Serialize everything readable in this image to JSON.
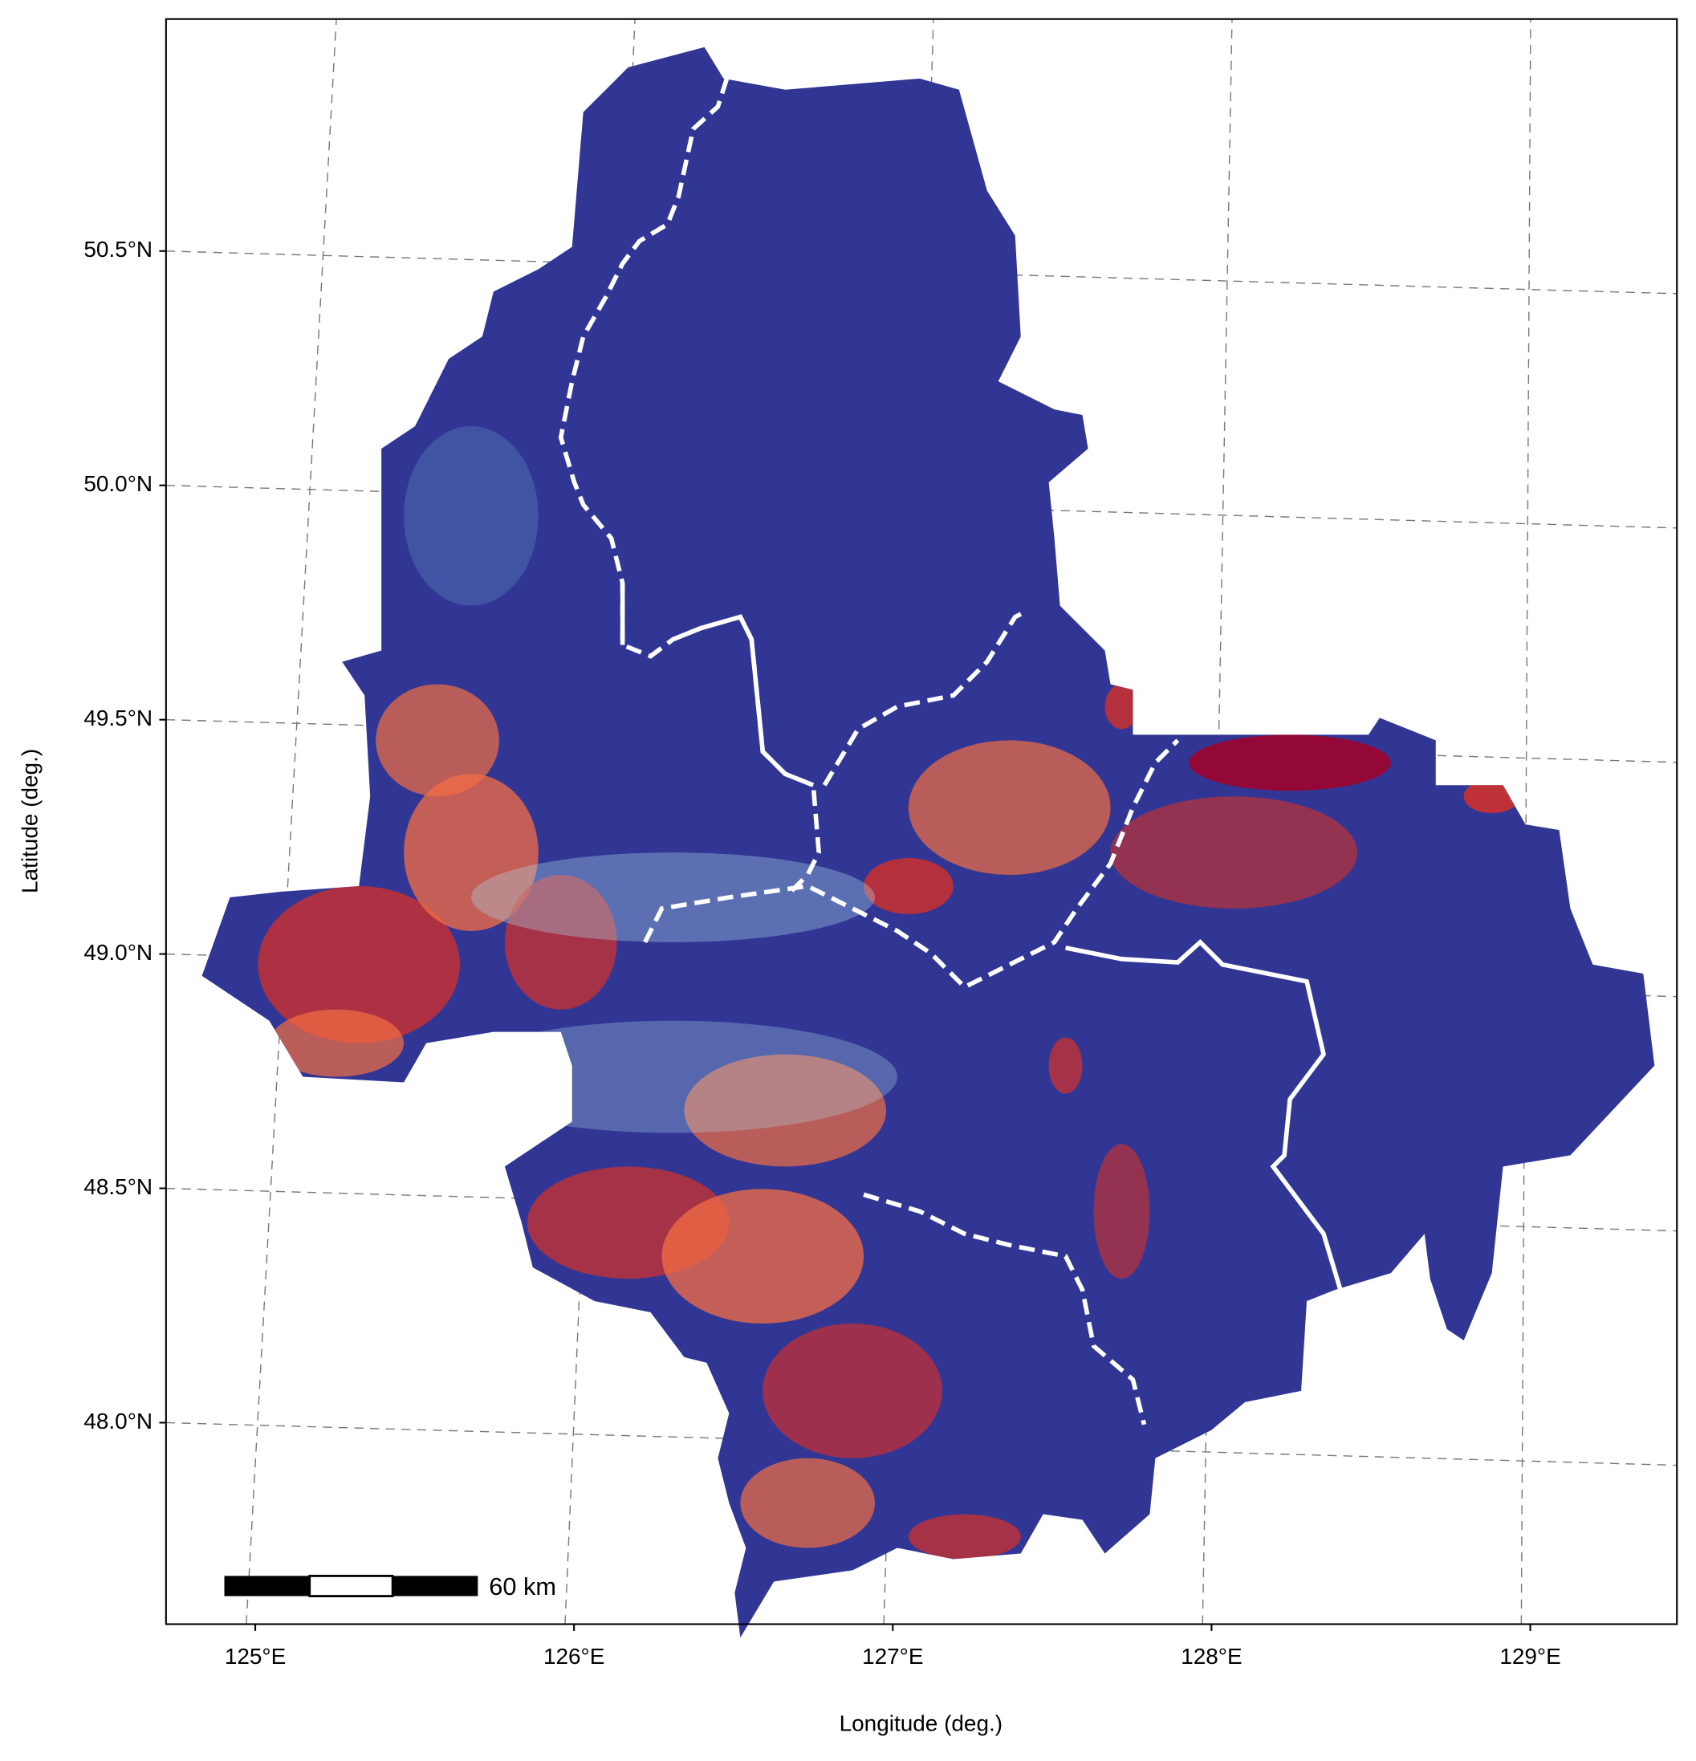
{
  "chart_data": {
    "type": "map",
    "xlabel": "Longitude (deg.)",
    "ylabel": "Latitude (deg.)",
    "xlim": [
      124.72,
      129.46
    ],
    "ylim": [
      47.57,
      50.995
    ],
    "xticks": [
      {
        "value": 125,
        "label": "125°E"
      },
      {
        "value": 126,
        "label": "126°E"
      },
      {
        "value": 127,
        "label": "127°E"
      },
      {
        "value": 128,
        "label": "128°E"
      },
      {
        "value": 129,
        "label": "129°E"
      }
    ],
    "yticks": [
      {
        "value": 48.0,
        "label": "48.0°N"
      },
      {
        "value": 48.5,
        "label": "48.5°N"
      },
      {
        "value": 49.0,
        "label": "49.0°N"
      },
      {
        "value": 49.5,
        "label": "49.5°N"
      },
      {
        "value": 50.0,
        "label": "50.0°N"
      },
      {
        "value": 50.5,
        "label": "50.5°N"
      }
    ],
    "grid": true,
    "scale_bar": {
      "label": "60 km"
    }
  }
}
